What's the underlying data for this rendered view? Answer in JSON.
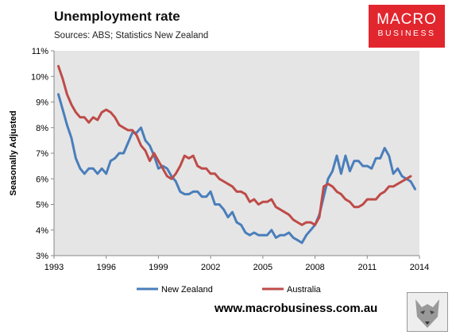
{
  "title": "Unemployment rate",
  "subtitle": "Sources: ABS; Statistics New Zealand",
  "logo": {
    "line1": "MACRO",
    "line2": "BUSINESS"
  },
  "footer_url": "www.macrobusiness.com.au",
  "colors": {
    "nz": "#4a7ebb",
    "au": "#be4b48",
    "plot_bg": "#e5e5e5",
    "logo_bg": "#e2262e"
  },
  "chart_data": {
    "type": "line",
    "title": "Unemployment rate",
    "subtitle": "Sources: ABS; Statistics New Zealand",
    "xlabel": "",
    "ylabel": "Seasonally Adjusted",
    "xlim": [
      1993,
      2014
    ],
    "ylim": [
      3,
      11
    ],
    "x_ticks": [
      1993,
      1996,
      1999,
      2002,
      2005,
      2008,
      2011,
      2014
    ],
    "x_tick_labels": [
      "1993",
      "1996",
      "1999",
      "2002",
      "2005",
      "2008",
      "2011",
      "2014"
    ],
    "y_ticks": [
      3,
      4,
      5,
      6,
      7,
      8,
      9,
      10,
      11
    ],
    "y_tick_labels": [
      "3%",
      "4%",
      "5%",
      "6%",
      "7%",
      "8%",
      "9%",
      "10%",
      "11%"
    ],
    "legend_position": "bottom",
    "grid": false,
    "series": [
      {
        "name": "New Zealand",
        "color": "#4a7ebb",
        "points": [
          [
            1993.25,
            9.3
          ],
          [
            1993.5,
            8.7
          ],
          [
            1993.75,
            8.1
          ],
          [
            1994.0,
            7.6
          ],
          [
            1994.25,
            6.8
          ],
          [
            1994.5,
            6.4
          ],
          [
            1994.75,
            6.2
          ],
          [
            1995.0,
            6.4
          ],
          [
            1995.25,
            6.4
          ],
          [
            1995.5,
            6.2
          ],
          [
            1995.75,
            6.4
          ],
          [
            1996.0,
            6.2
          ],
          [
            1996.25,
            6.7
          ],
          [
            1996.5,
            6.8
          ],
          [
            1996.75,
            7.0
          ],
          [
            1997.0,
            7.0
          ],
          [
            1997.25,
            7.4
          ],
          [
            1997.5,
            7.8
          ],
          [
            1997.75,
            7.8
          ],
          [
            1998.0,
            8.0
          ],
          [
            1998.25,
            7.5
          ],
          [
            1998.5,
            7.3
          ],
          [
            1998.75,
            6.9
          ],
          [
            1999.0,
            6.4
          ],
          [
            1999.25,
            6.5
          ],
          [
            1999.5,
            6.4
          ],
          [
            1999.75,
            6.1
          ],
          [
            2000.0,
            5.9
          ],
          [
            2000.25,
            5.5
          ],
          [
            2000.5,
            5.4
          ],
          [
            2000.75,
            5.4
          ],
          [
            2001.0,
            5.5
          ],
          [
            2001.25,
            5.5
          ],
          [
            2001.5,
            5.3
          ],
          [
            2001.75,
            5.3
          ],
          [
            2002.0,
            5.5
          ],
          [
            2002.25,
            5.0
          ],
          [
            2002.5,
            5.0
          ],
          [
            2002.75,
            4.8
          ],
          [
            2003.0,
            4.5
          ],
          [
            2003.25,
            4.7
          ],
          [
            2003.5,
            4.3
          ],
          [
            2003.75,
            4.2
          ],
          [
            2004.0,
            3.9
          ],
          [
            2004.25,
            3.8
          ],
          [
            2004.5,
            3.9
          ],
          [
            2004.75,
            3.8
          ],
          [
            2005.0,
            3.8
          ],
          [
            2005.25,
            3.8
          ],
          [
            2005.5,
            4.0
          ],
          [
            2005.75,
            3.7
          ],
          [
            2006.0,
            3.8
          ],
          [
            2006.25,
            3.8
          ],
          [
            2006.5,
            3.9
          ],
          [
            2006.75,
            3.7
          ],
          [
            2007.0,
            3.6
          ],
          [
            2007.25,
            3.5
          ],
          [
            2007.5,
            3.8
          ],
          [
            2007.75,
            4.0
          ],
          [
            2008.0,
            4.2
          ],
          [
            2008.25,
            4.6
          ],
          [
            2008.5,
            5.3
          ],
          [
            2008.75,
            6.0
          ],
          [
            2009.0,
            6.3
          ],
          [
            2009.25,
            6.9
          ],
          [
            2009.5,
            6.2
          ],
          [
            2009.75,
            6.9
          ],
          [
            2010.0,
            6.3
          ],
          [
            2010.25,
            6.7
          ],
          [
            2010.5,
            6.7
          ],
          [
            2010.75,
            6.5
          ],
          [
            2011.0,
            6.5
          ],
          [
            2011.25,
            6.4
          ],
          [
            2011.5,
            6.8
          ],
          [
            2011.75,
            6.8
          ],
          [
            2012.0,
            7.2
          ],
          [
            2012.25,
            6.9
          ],
          [
            2012.5,
            6.2
          ],
          [
            2012.75,
            6.4
          ],
          [
            2013.0,
            6.1
          ],
          [
            2013.25,
            6.0
          ],
          [
            2013.5,
            5.9
          ],
          [
            2013.75,
            5.6
          ]
        ]
      },
      {
        "name": "Australia",
        "color": "#be4b48",
        "points": [
          [
            1993.25,
            10.4
          ],
          [
            1993.5,
            9.9
          ],
          [
            1993.75,
            9.3
          ],
          [
            1994.0,
            8.9
          ],
          [
            1994.25,
            8.6
          ],
          [
            1994.5,
            8.4
          ],
          [
            1994.75,
            8.4
          ],
          [
            1995.0,
            8.2
          ],
          [
            1995.25,
            8.4
          ],
          [
            1995.5,
            8.3
          ],
          [
            1995.75,
            8.6
          ],
          [
            1996.0,
            8.7
          ],
          [
            1996.25,
            8.6
          ],
          [
            1996.5,
            8.4
          ],
          [
            1996.75,
            8.1
          ],
          [
            1997.0,
            8.0
          ],
          [
            1997.25,
            7.9
          ],
          [
            1997.5,
            7.9
          ],
          [
            1997.75,
            7.7
          ],
          [
            1998.0,
            7.3
          ],
          [
            1998.25,
            7.1
          ],
          [
            1998.5,
            6.7
          ],
          [
            1998.75,
            7.0
          ],
          [
            1999.0,
            6.7
          ],
          [
            1999.25,
            6.4
          ],
          [
            1999.5,
            6.1
          ],
          [
            1999.75,
            6.0
          ],
          [
            2000.0,
            6.2
          ],
          [
            2000.25,
            6.5
          ],
          [
            2000.5,
            6.9
          ],
          [
            2000.75,
            6.8
          ],
          [
            2001.0,
            6.9
          ],
          [
            2001.25,
            6.5
          ],
          [
            2001.5,
            6.4
          ],
          [
            2001.75,
            6.4
          ],
          [
            2002.0,
            6.2
          ],
          [
            2002.25,
            6.2
          ],
          [
            2002.5,
            6.0
          ],
          [
            2002.75,
            5.9
          ],
          [
            2003.0,
            5.8
          ],
          [
            2003.25,
            5.7
          ],
          [
            2003.5,
            5.5
          ],
          [
            2003.75,
            5.5
          ],
          [
            2004.0,
            5.4
          ],
          [
            2004.25,
            5.1
          ],
          [
            2004.5,
            5.2
          ],
          [
            2004.75,
            5.0
          ],
          [
            2005.0,
            5.1
          ],
          [
            2005.25,
            5.1
          ],
          [
            2005.5,
            5.2
          ],
          [
            2005.75,
            4.9
          ],
          [
            2006.0,
            4.8
          ],
          [
            2006.25,
            4.7
          ],
          [
            2006.5,
            4.6
          ],
          [
            2006.75,
            4.4
          ],
          [
            2007.0,
            4.3
          ],
          [
            2007.25,
            4.2
          ],
          [
            2007.5,
            4.3
          ],
          [
            2007.75,
            4.3
          ],
          [
            2008.0,
            4.2
          ],
          [
            2008.25,
            4.5
          ],
          [
            2008.5,
            5.7
          ],
          [
            2008.75,
            5.8
          ],
          [
            2009.0,
            5.7
          ],
          [
            2009.25,
            5.5
          ],
          [
            2009.5,
            5.4
          ],
          [
            2009.75,
            5.2
          ],
          [
            2010.0,
            5.1
          ],
          [
            2010.25,
            4.9
          ],
          [
            2010.5,
            4.9
          ],
          [
            2010.75,
            5.0
          ],
          [
            2011.0,
            5.2
          ],
          [
            2011.25,
            5.2
          ],
          [
            2011.5,
            5.2
          ],
          [
            2011.75,
            5.4
          ],
          [
            2012.0,
            5.5
          ],
          [
            2012.25,
            5.7
          ],
          [
            2012.5,
            5.7
          ],
          [
            2012.75,
            5.8
          ],
          [
            2013.0,
            5.9
          ],
          [
            2013.25,
            6.0
          ],
          [
            2013.5,
            6.1
          ]
        ]
      }
    ]
  }
}
